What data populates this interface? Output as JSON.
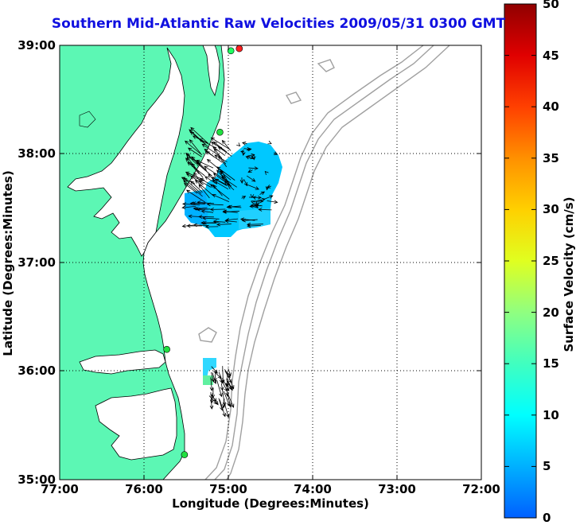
{
  "title": "Southern Mid-Atlantic Raw Velocities 2009/05/31 0300 GMT",
  "x_axis": {
    "label": "Longitude (Degrees:Minutes)",
    "ticks": [
      "77:00",
      "76:00",
      "75:00",
      "74:00",
      "73:00",
      "72:00"
    ]
  },
  "y_axis": {
    "label": "Latitude (Degrees:Minutes)",
    "ticks": [
      "39:00",
      "38:00",
      "37:00",
      "36:00",
      "35:00"
    ]
  },
  "colorbar": {
    "label": "Surface Velocity (cm/s)",
    "ticks": [
      "50",
      "45",
      "40",
      "35",
      "30",
      "25",
      "20",
      "15",
      "10",
      "5",
      "0"
    ],
    "min": 0,
    "max": 50,
    "colors": [
      "#0060ff",
      "#00c0ff",
      "#00ffff",
      "#40ffc0",
      "#c0ff40",
      "#ffff00",
      "#ffc000",
      "#ff8000",
      "#ff2000",
      "#c00000",
      "#900000"
    ]
  },
  "map": {
    "lon_range": [
      -77,
      -72
    ],
    "lat_range": [
      35,
      39
    ],
    "grid": "dotted",
    "land_color": "#5cf7b4",
    "water_color": "#ffffff",
    "bathymetry_color": "#a0a0a0"
  },
  "stations": [
    {
      "lon": -74.87,
      "lat": 38.97,
      "color": "#ff2020"
    },
    {
      "lon": -74.97,
      "lat": 38.95,
      "color": "#20ff60"
    },
    {
      "lon": -75.1,
      "lat": 38.2,
      "color": "#20e040"
    },
    {
      "lon": -75.73,
      "lat": 36.2,
      "color": "#20e040"
    },
    {
      "lon": -75.52,
      "lat": 35.23,
      "color": "#20e040"
    }
  ]
}
